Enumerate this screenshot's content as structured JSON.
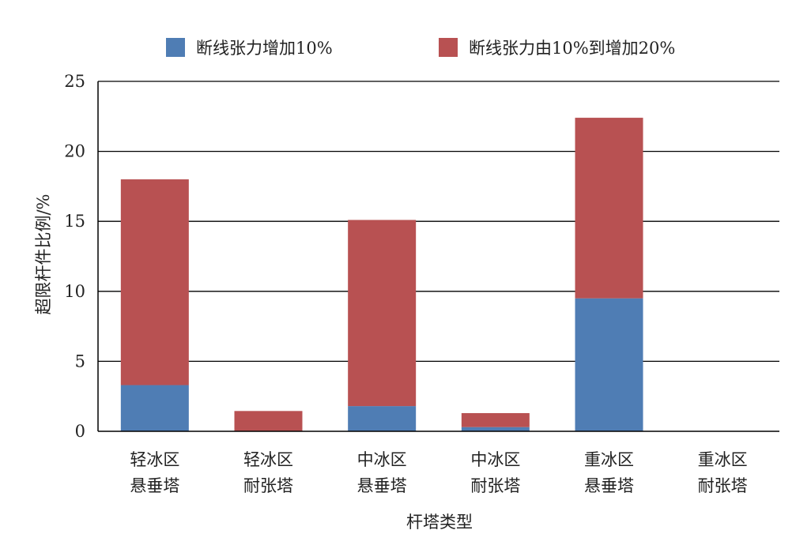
{
  "chart_data": {
    "type": "bar",
    "stacked": true,
    "categories": [
      [
        "轻冰区",
        "悬垂塔"
      ],
      [
        "轻冰区",
        "耐张塔"
      ],
      [
        "中冰区",
        "悬垂塔"
      ],
      [
        "中冰区",
        "耐张塔"
      ],
      [
        "重冰区",
        "悬垂塔"
      ],
      [
        "重冰区",
        "耐张塔"
      ]
    ],
    "series": [
      {
        "name": "断线张力增加10%",
        "color": "#4f7db4",
        "values": [
          3.3,
          0.0,
          1.8,
          0.3,
          9.5,
          0.0
        ]
      },
      {
        "name": "断线张力由10%到增加20%",
        "color": "#b85152",
        "values": [
          14.7,
          1.45,
          13.3,
          1.0,
          12.9,
          0.0
        ]
      }
    ],
    "xlabel": "杆塔类型",
    "ylabel": "超限杆件比例/%",
    "ylim": [
      0,
      25
    ],
    "yticks": [
      0,
      5,
      10,
      15,
      20,
      25
    ],
    "grid": true,
    "legend_position": "top"
  }
}
